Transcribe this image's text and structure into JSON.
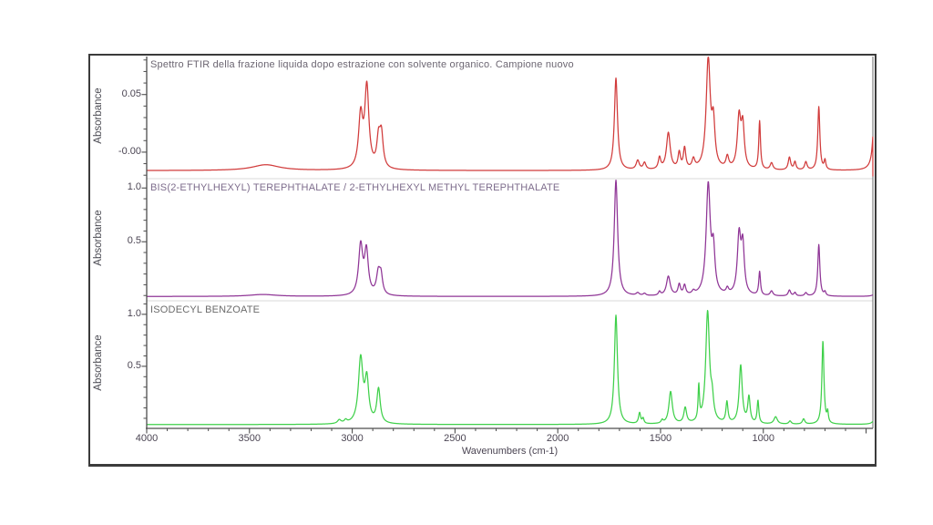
{
  "chart_data": {
    "type": "line",
    "description": "Three stacked FTIR absorbance spectra",
    "x_axis": {
      "title": "Wavenumbers (cm-1)",
      "range": [
        4000,
        467
      ],
      "major_ticks": [
        4000,
        3500,
        3000,
        2500,
        2000,
        1500,
        1000
      ],
      "tick_labels": [
        "4000",
        "3500",
        "3000",
        "2500",
        "2000",
        "1500",
        "1000"
      ],
      "unlabeled_major_ticks": [
        500
      ],
      "minor_tick_step": 100
    },
    "peaks_format": "[wavenumber_cm1, height_above_baseline, half_width_cm1]",
    "panels": [
      {
        "title": "Spettro FTIR della frazione liquida dopo estrazione con solvente organico. Campione nuovo",
        "title_color": "#6c6672",
        "ylabel": "Absorbance",
        "line_color": "#d13b3b",
        "ylim": [
          -0.023,
          0.083
        ],
        "major_yticks": [
          {
            "value": 0.05,
            "label": "0.05"
          },
          {
            "value": 0,
            "label": "-0.00"
          }
        ],
        "minor_ytick_step": 0.01,
        "baseline": -0.016,
        "edge_clip_spike": true,
        "edge_clip_drop_to": -0.021,
        "peaks": [
          [
            3420,
            0.005,
            80
          ],
          [
            2959,
            0.045,
            12
          ],
          [
            2929,
            0.07,
            12
          ],
          [
            2872,
            0.024,
            10
          ],
          [
            2858,
            0.028,
            10
          ],
          [
            1717,
            0.08,
            9
          ],
          [
            1611,
            0.008,
            9
          ],
          [
            1578,
            0.006,
            8
          ],
          [
            1505,
            0.01,
            7
          ],
          [
            1462,
            0.032,
            11
          ],
          [
            1409,
            0.014,
            7
          ],
          [
            1383,
            0.018,
            7
          ],
          [
            1340,
            0.008,
            8
          ],
          [
            1268,
            0.095,
            12
          ],
          [
            1243,
            0.036,
            9
          ],
          [
            1175,
            0.01,
            8
          ],
          [
            1118,
            0.044,
            10
          ],
          [
            1100,
            0.036,
            9
          ],
          [
            1018,
            0.042,
            5
          ],
          [
            960,
            0.006,
            8
          ],
          [
            873,
            0.011,
            7
          ],
          [
            846,
            0.007,
            6
          ],
          [
            793,
            0.007,
            7
          ],
          [
            730,
            0.055,
            6
          ],
          [
            700,
            0.008,
            5
          ],
          [
            455,
            0.1,
            8
          ]
        ]
      },
      {
        "title": "BIS(2-ETHYLHEXYL) TEREPHTHALATE / 2-ETHYLHEXYL METHYL TEREPHTHALATE",
        "title_color": "#7d6c8c",
        "ylabel": "Absorbance",
        "line_color": "#8f3596",
        "ylim": [
          -0.049,
          1.087
        ],
        "major_yticks": [
          {
            "value": 1.0,
            "label": "1.0"
          },
          {
            "value": 0.5,
            "label": "0.5"
          }
        ],
        "minor_ytick_step": 0.1,
        "baseline": -0.009,
        "edge_clip_spike": false,
        "peaks": [
          [
            3435,
            0.018,
            80
          ],
          [
            2959,
            0.46,
            12
          ],
          [
            2931,
            0.4,
            11
          ],
          [
            2873,
            0.2,
            11
          ],
          [
            2860,
            0.16,
            9
          ],
          [
            1717,
            1.08,
            10
          ],
          [
            1611,
            0.025,
            9
          ],
          [
            1578,
            0.02,
            8
          ],
          [
            1505,
            0.035,
            6
          ],
          [
            1462,
            0.18,
            11
          ],
          [
            1409,
            0.1,
            7
          ],
          [
            1383,
            0.09,
            7
          ],
          [
            1340,
            0.03,
            8
          ],
          [
            1268,
            1.02,
            12
          ],
          [
            1243,
            0.38,
            9
          ],
          [
            1175,
            0.05,
            7
          ],
          [
            1118,
            0.54,
            10
          ],
          [
            1100,
            0.44,
            9
          ],
          [
            1018,
            0.22,
            5
          ],
          [
            960,
            0.045,
            8
          ],
          [
            873,
            0.055,
            7
          ],
          [
            846,
            0.032,
            6
          ],
          [
            793,
            0.03,
            7
          ],
          [
            730,
            0.48,
            6
          ],
          [
            700,
            0.035,
            5
          ],
          [
            450,
            0.06,
            10
          ]
        ]
      },
      {
        "title": "ISODECYL BENZOATE",
        "title_color": "#6b6b6b",
        "ylabel": "Absorbance",
        "line_color": "#3fd04a",
        "ylim": [
          -0.097,
          1.13
        ],
        "major_yticks": [
          {
            "value": 1.0,
            "label": "1.0"
          },
          {
            "value": 0.5,
            "label": "0.5"
          }
        ],
        "minor_ytick_step": 0.1,
        "baseline": -0.06,
        "edge_clip_spike": false,
        "peaks": [
          [
            3063,
            0.035,
            10
          ],
          [
            3032,
            0.028,
            8
          ],
          [
            2959,
            0.62,
            13
          ],
          [
            2929,
            0.4,
            11
          ],
          [
            2872,
            0.33,
            10
          ],
          [
            1717,
            1.05,
            9
          ],
          [
            1602,
            0.105,
            6
          ],
          [
            1585,
            0.05,
            5
          ],
          [
            1492,
            0.03,
            6
          ],
          [
            1451,
            0.31,
            10
          ],
          [
            1380,
            0.15,
            8
          ],
          [
            1314,
            0.33,
            4
          ],
          [
            1271,
            1.07,
            11
          ],
          [
            1249,
            0.18,
            8
          ],
          [
            1177,
            0.2,
            6
          ],
          [
            1110,
            0.56,
            9
          ],
          [
            1070,
            0.25,
            7
          ],
          [
            1026,
            0.22,
            5
          ],
          [
            940,
            0.07,
            10
          ],
          [
            870,
            0.03,
            7
          ],
          [
            804,
            0.05,
            7
          ],
          [
            710,
            0.8,
            6
          ],
          [
            687,
            0.1,
            4
          ],
          [
            450,
            0.12,
            10
          ]
        ]
      }
    ],
    "style": {
      "axis_color": "#4d4d4d",
      "separator_color": "#d9d9d9",
      "tick_label_color": "#4b4553",
      "frame_border_color": "#3b3b3b"
    }
  }
}
